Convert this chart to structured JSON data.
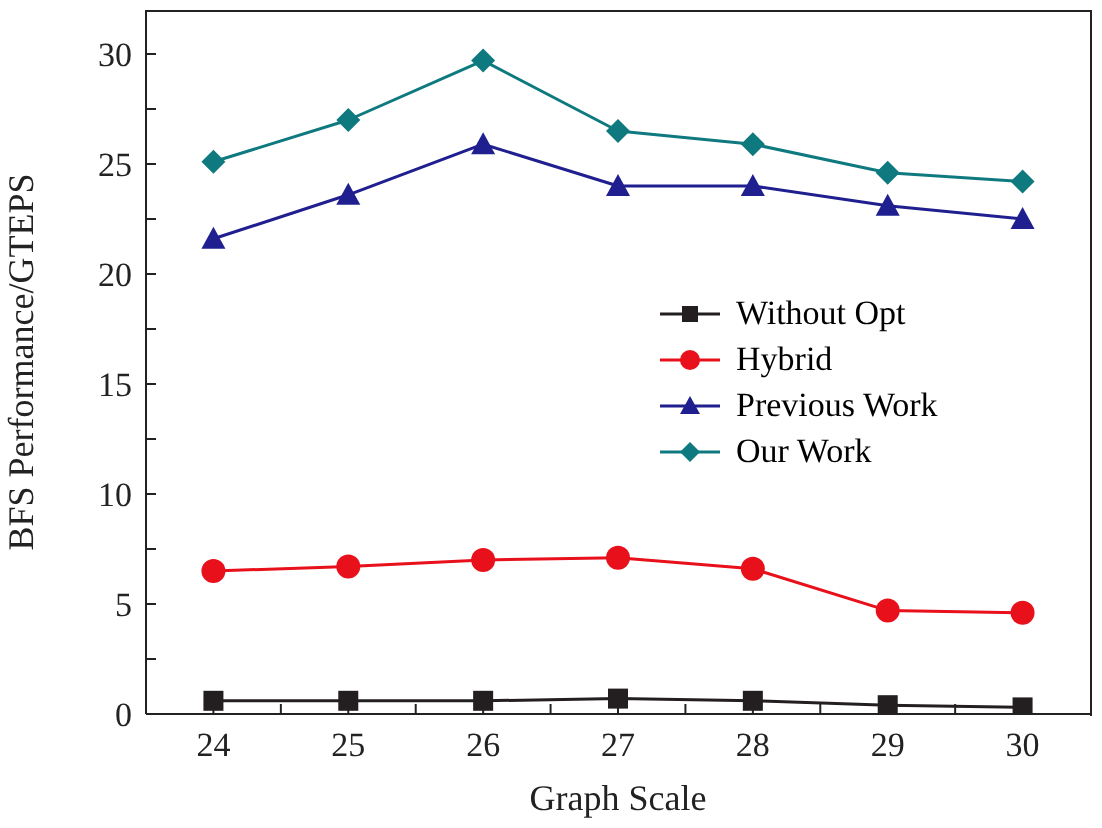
{
  "chart_data": {
    "type": "line",
    "xlabel": "Graph Scale",
    "ylabel": "BFS Performance/GTEPS",
    "x": [
      24,
      25,
      26,
      27,
      28,
      29,
      30
    ],
    "xlim": [
      23.5,
      30.5
    ],
    "xticks": [
      24,
      {
        "value": 24.5,
        "label": null
      },
      25,
      {
        "value": 25.5,
        "label": null
      },
      26,
      {
        "value": 26.5,
        "label": null
      },
      27,
      {
        "value": 27.5,
        "label": null
      },
      28,
      {
        "value": 28.5,
        "label": null
      },
      29,
      {
        "value": 29.5,
        "label": null
      },
      30
    ],
    "ylim": [
      0,
      32
    ],
    "yticks": [
      0,
      {
        "value": 2.5,
        "label": null
      },
      5,
      {
        "value": 7.5,
        "label": null
      },
      10,
      {
        "value": 12.5,
        "label": null
      },
      15,
      {
        "value": 17.5,
        "label": null
      },
      20,
      {
        "value": 22.5,
        "label": null
      },
      25,
      {
        "value": 27.5,
        "label": null
      },
      30
    ],
    "grid": false,
    "legend": "right",
    "line_style": "solid",
    "series": [
      {
        "name": "Without Opt",
        "color": "#231f20",
        "marker": "square",
        "values": [
          0.6,
          0.6,
          0.6,
          0.7,
          0.6,
          0.4,
          0.3
        ]
      },
      {
        "name": "Hybrid",
        "color": "#e8101a",
        "marker": "circle",
        "values": [
          6.5,
          6.7,
          7.0,
          7.1,
          6.6,
          4.7,
          4.6
        ]
      },
      {
        "name": "Previous Work",
        "color": "#1f1f8f",
        "marker": "triangle",
        "values": [
          21.6,
          23.6,
          25.9,
          24.0,
          24.0,
          23.1,
          22.5
        ]
      },
      {
        "name": "Our Work",
        "color": "#0e7a80",
        "marker": "diamond",
        "values": [
          25.1,
          27.0,
          29.7,
          26.5,
          25.9,
          24.6,
          24.2
        ]
      }
    ]
  }
}
